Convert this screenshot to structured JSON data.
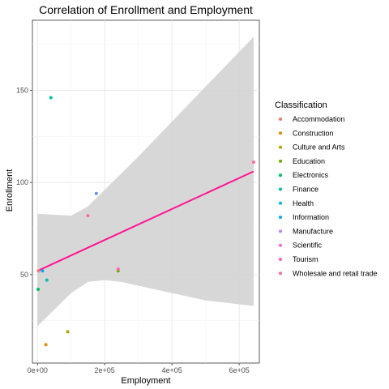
{
  "chart_data": {
    "type": "scatter",
    "title": "Correlation of Enrollment and Employment",
    "xlabel": "Employment",
    "ylabel": "Enrollment",
    "xlim": [
      -15000,
      660000
    ],
    "ylim": [
      2,
      188
    ],
    "x_ticks": [
      0,
      200000,
      400000,
      600000
    ],
    "x_tick_labels": [
      "0e+00",
      "2e+05",
      "4e+05",
      "6e+05"
    ],
    "y_ticks": [
      50,
      100,
      150
    ],
    "y_tick_labels": [
      "50",
      "100",
      "150"
    ],
    "grid": true,
    "legend": {
      "title": "Classification",
      "position": "right",
      "entries": [
        {
          "label": "Accommodation",
          "color": "#F8766D"
        },
        {
          "label": "Construction",
          "color": "#DB8E00"
        },
        {
          "label": "Culture and Arts",
          "color": "#AEA200"
        },
        {
          "label": "Education",
          "color": "#64B200"
        },
        {
          "label": "Electronics",
          "color": "#00BD5C"
        },
        {
          "label": "Finance",
          "color": "#00C1A7"
        },
        {
          "label": "Health",
          "color": "#00BADE"
        },
        {
          "label": "Information",
          "color": "#00A6FF"
        },
        {
          "label": "Manufacture",
          "color": "#B385FF"
        },
        {
          "label": "Scientific",
          "color": "#EF67EB"
        },
        {
          "label": "Tourism",
          "color": "#FF63B6"
        },
        {
          "label": "Wholesale and retail trade",
          "color": "#FF6C91"
        }
      ]
    },
    "points": [
      {
        "x": 3000,
        "y": 52,
        "color": "#F8766D"
      },
      {
        "x": 25000,
        "y": 12,
        "color": "#DB8E00"
      },
      {
        "x": 90000,
        "y": 19,
        "color": "#AEA200"
      },
      {
        "x": 240000,
        "y": 52,
        "color": "#64B200"
      },
      {
        "x": 2000,
        "y": 42,
        "color": "#00BD5C"
      },
      {
        "x": 28000,
        "y": 47,
        "color": "#00C1A7"
      },
      {
        "x": 40000,
        "y": 146,
        "color": "#00C1A7"
      },
      {
        "x": 15000,
        "y": 52,
        "color": "#00A6FF"
      },
      {
        "x": 175000,
        "y": 94,
        "color": "#6B8FF5"
      },
      {
        "x": 150000,
        "y": 82,
        "color": "#FF6C91"
      },
      {
        "x": 240000,
        "y": 53,
        "color": "#FF63B6"
      },
      {
        "x": 643000,
        "y": 111,
        "color": "#FF6C91"
      }
    ],
    "trend_line": {
      "color": "#FF1493",
      "from": {
        "x": 0,
        "y": 52
      },
      "to": {
        "x": 643000,
        "y": 106
      }
    },
    "confidence_band": {
      "color": "#D3D3D3",
      "upper": [
        [
          0,
          83
        ],
        [
          100000,
          82
        ],
        [
          150000,
          87
        ],
        [
          200000,
          96
        ],
        [
          300000,
          114
        ],
        [
          400000,
          133
        ],
        [
          500000,
          152
        ],
        [
          643000,
          179
        ]
      ],
      "lower": [
        [
          643000,
          33
        ],
        [
          500000,
          36
        ],
        [
          400000,
          40
        ],
        [
          300000,
          44
        ],
        [
          250000,
          46
        ],
        [
          200000,
          47
        ],
        [
          150000,
          46
        ],
        [
          100000,
          40
        ],
        [
          0,
          22
        ]
      ]
    }
  }
}
